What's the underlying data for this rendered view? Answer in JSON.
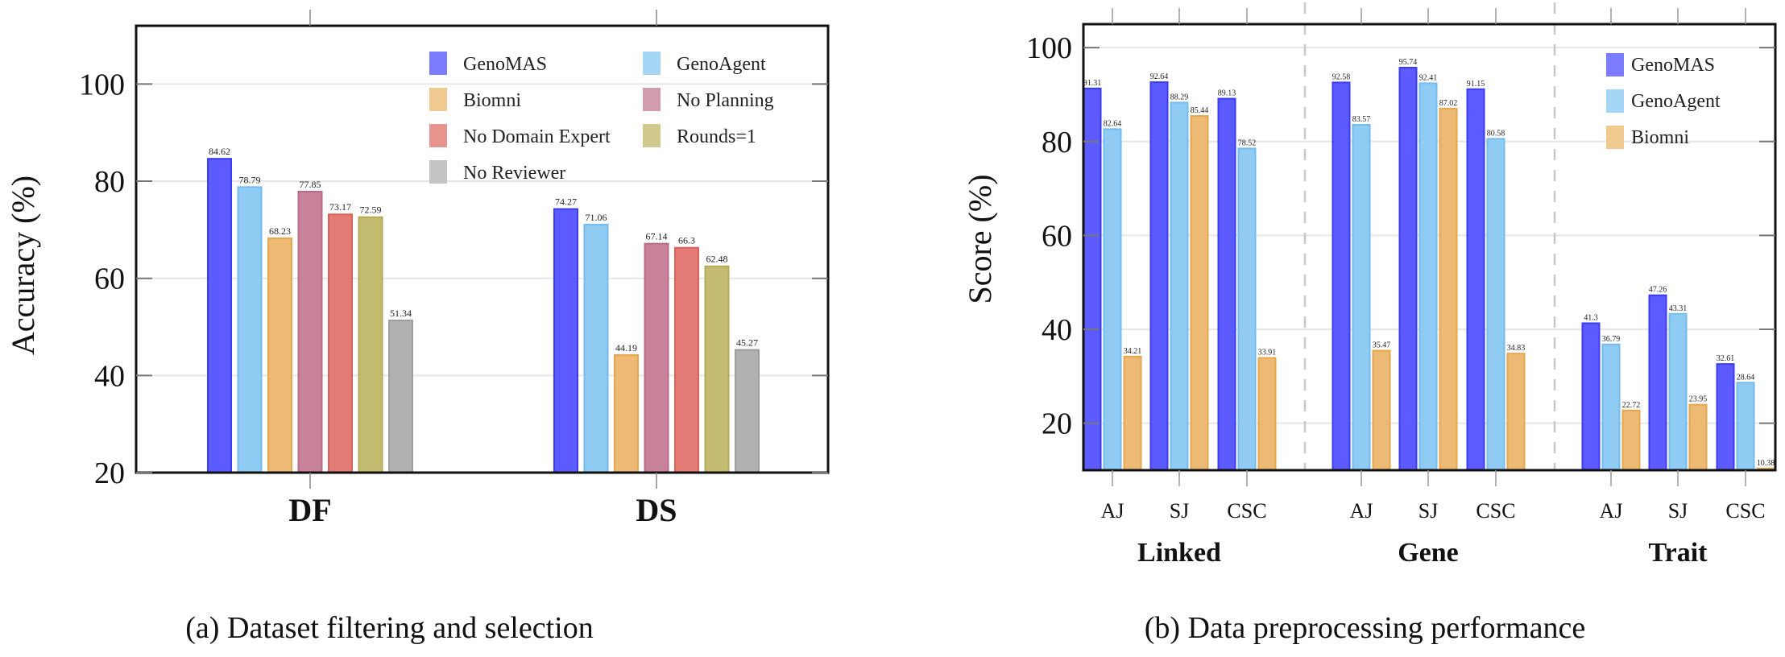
{
  "chart_data": [
    {
      "type": "bar",
      "title": "",
      "caption": "(a) Dataset filtering and selection",
      "xlabel": "",
      "ylabel": "Accuracy (%)",
      "ylim": [
        20,
        112
      ],
      "yticks": [
        20,
        40,
        60,
        80,
        100
      ],
      "grid": true,
      "legend_position": "top-right",
      "legend_columns": 2,
      "categories": [
        "DF",
        "DS"
      ],
      "series": [
        {
          "name": "GenoMAS",
          "color": "#5b5bff",
          "stroke": "#3c3cf2",
          "values": [
            84.62,
            74.27
          ]
        },
        {
          "name": "GenoAgent",
          "color": "#8fcbf2",
          "stroke": "#74bbee",
          "values": [
            78.79,
            71.06
          ]
        },
        {
          "name": "Biomni",
          "color": "#ecba75",
          "stroke": "#e6a64b",
          "values": [
            68.23,
            44.19
          ]
        },
        {
          "name": "No Planning",
          "color": "#c9829c",
          "stroke": "#b96a88",
          "values": [
            77.85,
            67.14
          ]
        },
        {
          "name": "No Domain Expert",
          "color": "#e27b73",
          "stroke": "#d9625a",
          "values": [
            73.17,
            66.3
          ]
        },
        {
          "name": "Rounds=1",
          "color": "#c4bc71",
          "stroke": "#b4ab59",
          "values": [
            72.59,
            62.48
          ]
        },
        {
          "name": "No Reviewer",
          "color": "#b1b1b1",
          "stroke": "#9d9d9d",
          "values": [
            51.34,
            45.27
          ]
        }
      ],
      "legend_order": [
        "GenoMAS",
        "GenoAgent",
        "Biomni",
        "No Planning",
        "No Domain Expert",
        "Rounds=1",
        "No Reviewer"
      ],
      "legend_colors": {
        "GenoMAS": "#7b7bff",
        "GenoAgent": "#a6d6f5",
        "Biomni": "#f0c990",
        "No Planning": "#d09cae",
        "No Domain Expert": "#e8948e",
        "Rounds=1": "#d0c98e",
        "No Reviewer": "#c4c4c4"
      }
    },
    {
      "type": "bar",
      "title": "",
      "caption": "(b) Data preprocessing performance",
      "xlabel": "",
      "ylabel": "Score (%)",
      "ylim": [
        10,
        105
      ],
      "yticks": [
        20,
        40,
        60,
        80,
        100
      ],
      "grid": true,
      "legend_position": "top-right",
      "groups": [
        "Linked",
        "Gene",
        "Trait"
      ],
      "subcategories": [
        "AJ",
        "SJ",
        "CSC"
      ],
      "categories": [
        "Linked AJ",
        "Linked SJ",
        "Linked CSC",
        "Gene AJ",
        "Gene SJ",
        "Gene CSC",
        "Trait AJ",
        "Trait SJ",
        "Trait CSC"
      ],
      "series": [
        {
          "name": "GenoMAS",
          "color": "#5b5bff",
          "stroke": "#3c3cf2",
          "values": [
            91.31,
            92.64,
            89.13,
            92.58,
            95.74,
            91.15,
            41.3,
            47.26,
            32.61
          ]
        },
        {
          "name": "GenoAgent",
          "color": "#8fcbf2",
          "stroke": "#74bbee",
          "values": [
            82.64,
            88.29,
            78.52,
            83.57,
            92.41,
            80.58,
            36.79,
            43.31,
            28.64
          ]
        },
        {
          "name": "Biomni",
          "color": "#ecba75",
          "stroke": "#e6a64b",
          "values": [
            34.21,
            85.44,
            33.91,
            35.47,
            87.02,
            34.83,
            22.72,
            23.95,
            10.38
          ]
        }
      ],
      "legend_order": [
        "GenoMAS",
        "GenoAgent",
        "Biomni"
      ],
      "legend_colors": {
        "GenoMAS": "#7b7bff",
        "GenoAgent": "#a6d6f5",
        "Biomni": "#f0c990"
      }
    }
  ]
}
